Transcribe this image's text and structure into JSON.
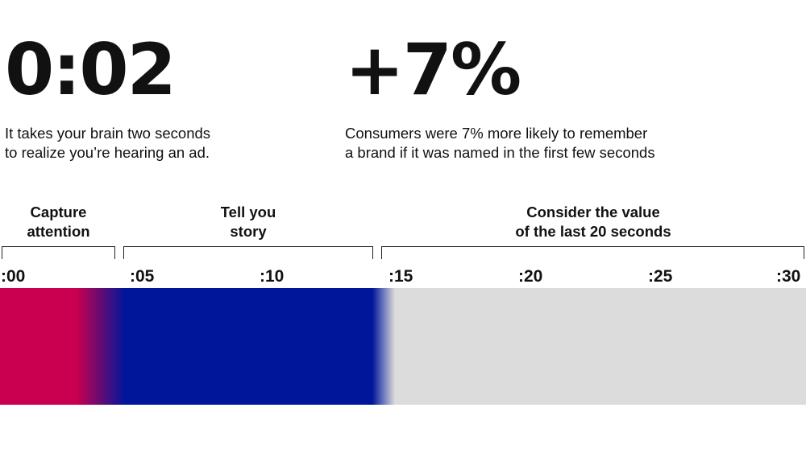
{
  "stats": [
    {
      "value": "0:02",
      "description": "It takes your brain two seconds\nto realize you’re hearing an ad."
    },
    {
      "value": "+7%",
      "description": "Consumers were 7% more likely to remember\na brand if it was named in the first few seconds"
    }
  ],
  "segments": [
    {
      "label": "Capture\nattention"
    },
    {
      "label": "Tell you\nstory"
    },
    {
      "label": "Consider the value\nof the last 20 seconds"
    }
  ],
  "ticks": [
    ":00",
    ":05",
    ":10",
    ":15",
    ":20",
    ":25",
    ":30"
  ],
  "colors": {
    "capture": "#c8004f",
    "story": "#00169a",
    "remaining": "#dcdcdc"
  }
}
